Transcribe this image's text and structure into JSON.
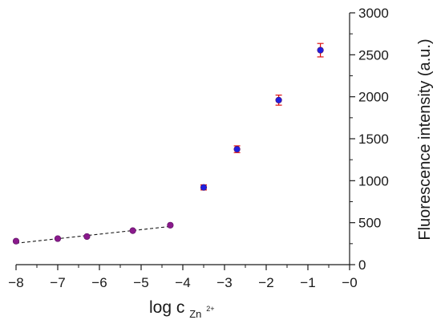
{
  "chart_data": {
    "type": "scatter",
    "x_axis": {
      "label_main": "log c",
      "label_subscript": "Zn",
      "label_superscript": "2+",
      "range": [
        -8,
        0
      ],
      "ticks": [
        -8,
        -7,
        -6,
        -5,
        -4,
        -3,
        -2,
        -1,
        0
      ],
      "tick_labels": [
        "−8",
        "−7",
        "−6",
        "−5",
        "−4",
        "−3",
        "−2",
        "−1",
        "−0"
      ]
    },
    "y_axis": {
      "label": "Fluorescence intensity (a.u.)",
      "position": "right",
      "range": [
        0,
        3000
      ],
      "ticks": [
        0,
        500,
        1000,
        1500,
        2000,
        2500,
        3000
      ],
      "tick_labels": [
        "0",
        "500",
        "1000",
        "1500",
        "2000",
        "2500",
        "3000"
      ]
    },
    "grid": false,
    "legend": null,
    "series": [
      {
        "marker_color": "#8a1a8c",
        "points": [
          {
            "x": -8.0,
            "y": 280,
            "err": 10
          },
          {
            "x": -7.0,
            "y": 310,
            "err": 10
          },
          {
            "x": -6.3,
            "y": 335,
            "err": 10
          },
          {
            "x": -5.2,
            "y": 405,
            "err": 10
          },
          {
            "x": -4.3,
            "y": 470,
            "err": 10
          }
        ]
      },
      {
        "marker_color": "#1f1fe0",
        "error_color": "#e01010",
        "points": [
          {
            "x": -3.5,
            "y": 920,
            "err": 30
          },
          {
            "x": -2.7,
            "y": 1375,
            "err": 40
          },
          {
            "x": -1.7,
            "y": 1960,
            "err": 60
          },
          {
            "x": -0.7,
            "y": 2555,
            "err": 80
          }
        ]
      }
    ],
    "fit_line": {
      "style": "dashed",
      "color": "#1a1a1a",
      "x": [
        -8.0,
        -4.3
      ],
      "y": [
        255,
        455
      ]
    }
  }
}
